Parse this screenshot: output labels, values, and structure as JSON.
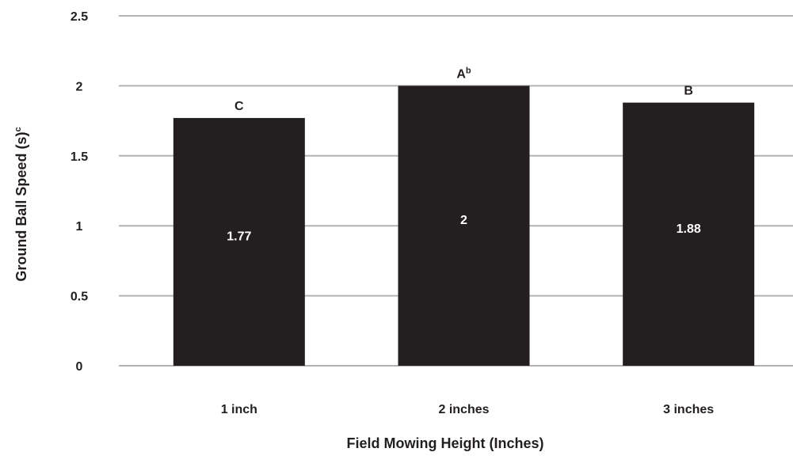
{
  "chart_data": {
    "type": "bar",
    "categories": [
      "1 inch",
      "2 inches",
      "3 inches"
    ],
    "values": [
      1.77,
      2,
      1.88
    ],
    "data_labels": [
      "1.77",
      "2",
      "1.88"
    ],
    "significance_letters": [
      {
        "letter": "C",
        "sup": ""
      },
      {
        "letter": "A",
        "sup": "b"
      },
      {
        "letter": "B",
        "sup": ""
      }
    ],
    "xlabel": "Field Mowing Height (Inches)",
    "ylabel": {
      "text": "Ground Ball Speed (s)",
      "sup": "c"
    },
    "ylim": [
      0,
      2.5
    ],
    "yticks": [
      "0",
      "0.5",
      "1",
      "1.5",
      "2",
      "2.5"
    ],
    "grid": true,
    "legend": "none",
    "colors": {
      "bar": "#231f20",
      "grid": "#b3b3b3",
      "text": "#231f20",
      "bar_label": "#ffffff"
    }
  }
}
